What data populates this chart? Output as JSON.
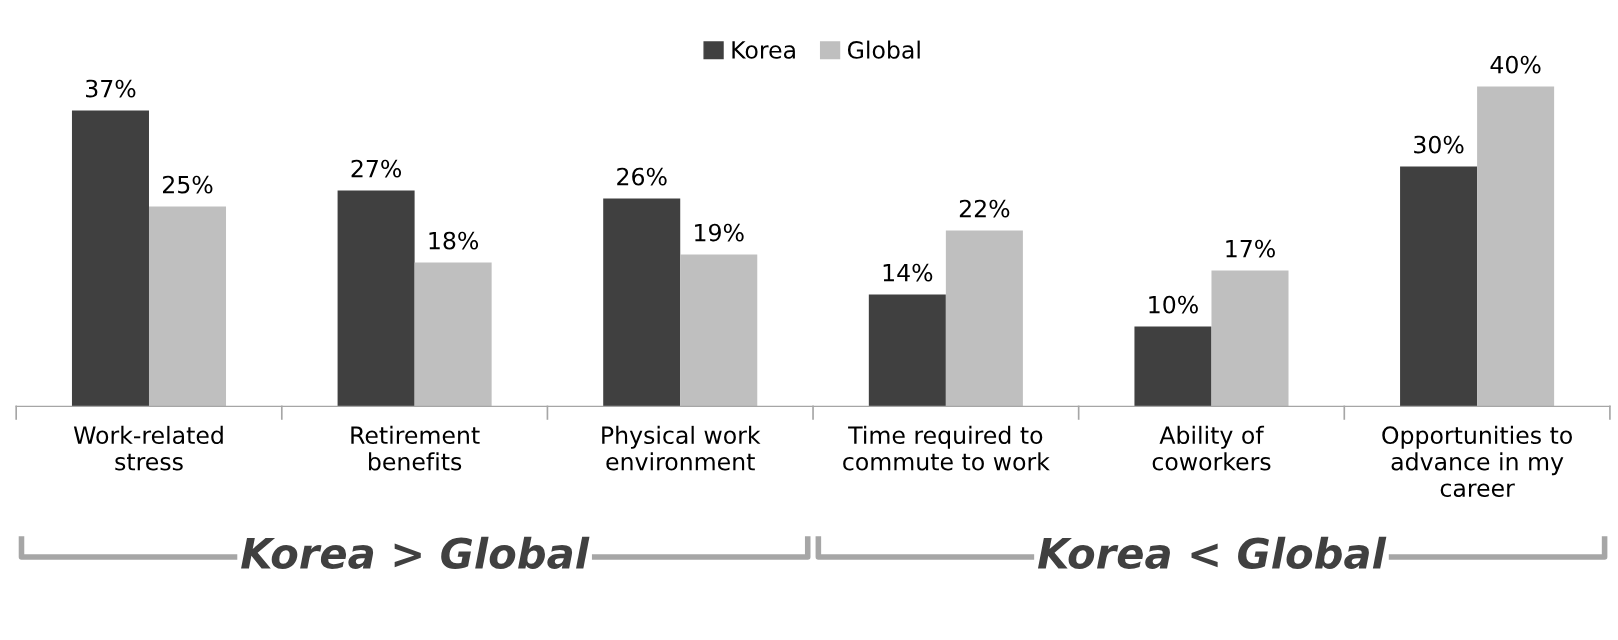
{
  "chart_data": {
    "type": "bar",
    "categories": [
      "Work-related\nstress",
      "Retirement\nbenefits",
      "Physical work\nenvironment",
      "Time required to\ncommute to work",
      "Ability of\ncoworkers",
      "Opportunities to\nadvance in my\ncareer"
    ],
    "series": [
      {
        "name": "Korea",
        "color": "#404040",
        "values": [
          37,
          27,
          26,
          14,
          10,
          30
        ],
        "value_labels": [
          "37%",
          "27%",
          "26%",
          "14%",
          "10%",
          "30%"
        ]
      },
      {
        "name": "Global",
        "color": "#bfbfbf",
        "values": [
          25,
          18,
          19,
          22,
          17,
          40
        ],
        "value_labels": [
          "25%",
          "18%",
          "19%",
          "22%",
          "17%",
          "40%"
        ]
      }
    ],
    "legend": "top",
    "grid": false,
    "annotations": [
      "Korea > Global",
      "Korea < Global"
    ]
  }
}
